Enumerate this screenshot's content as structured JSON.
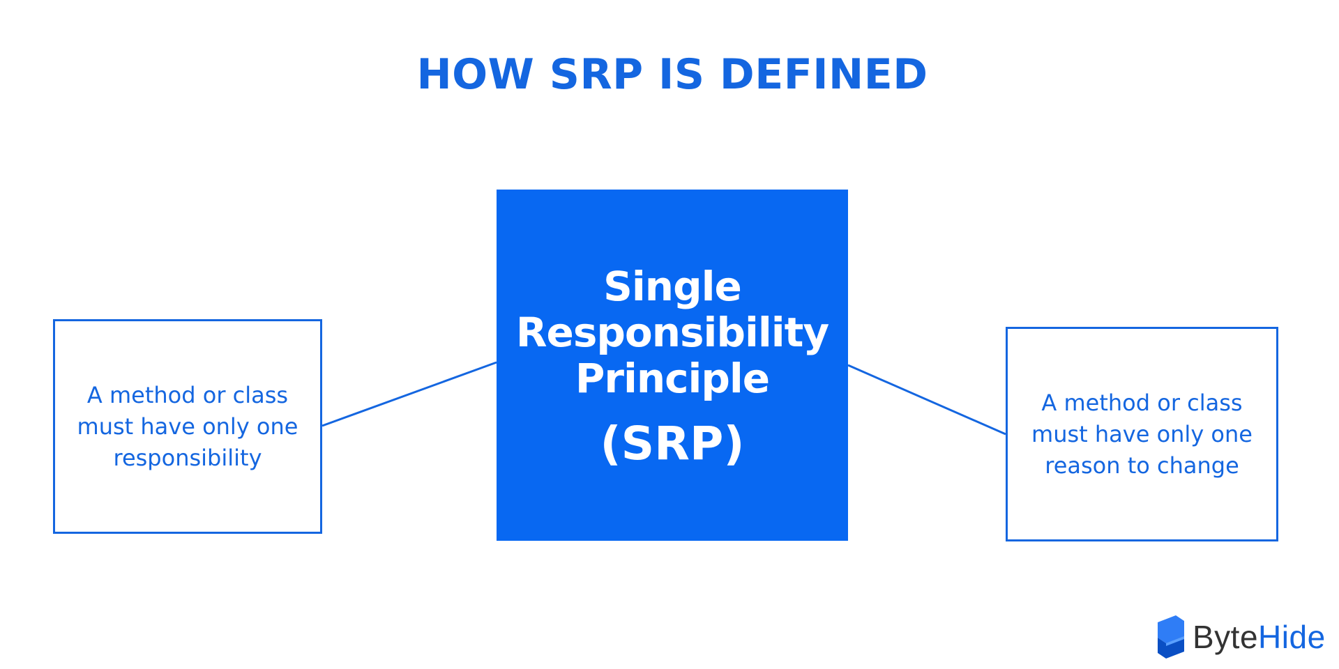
{
  "title": "HOW SRP IS DEFINED",
  "center": {
    "title": "Single Responsibility Principle",
    "abbreviation": "(SRP)"
  },
  "left_box": {
    "text": "A method or class must have only one responsibility"
  },
  "right_box": {
    "text": "A method or class must have only one reason to change"
  },
  "logo": {
    "part1": "Byte",
    "part2": "Hide"
  },
  "colors": {
    "primary": "#0868f2",
    "text_blue": "#1466e0",
    "logo_dark": "#333333",
    "background": "#ffffff"
  }
}
